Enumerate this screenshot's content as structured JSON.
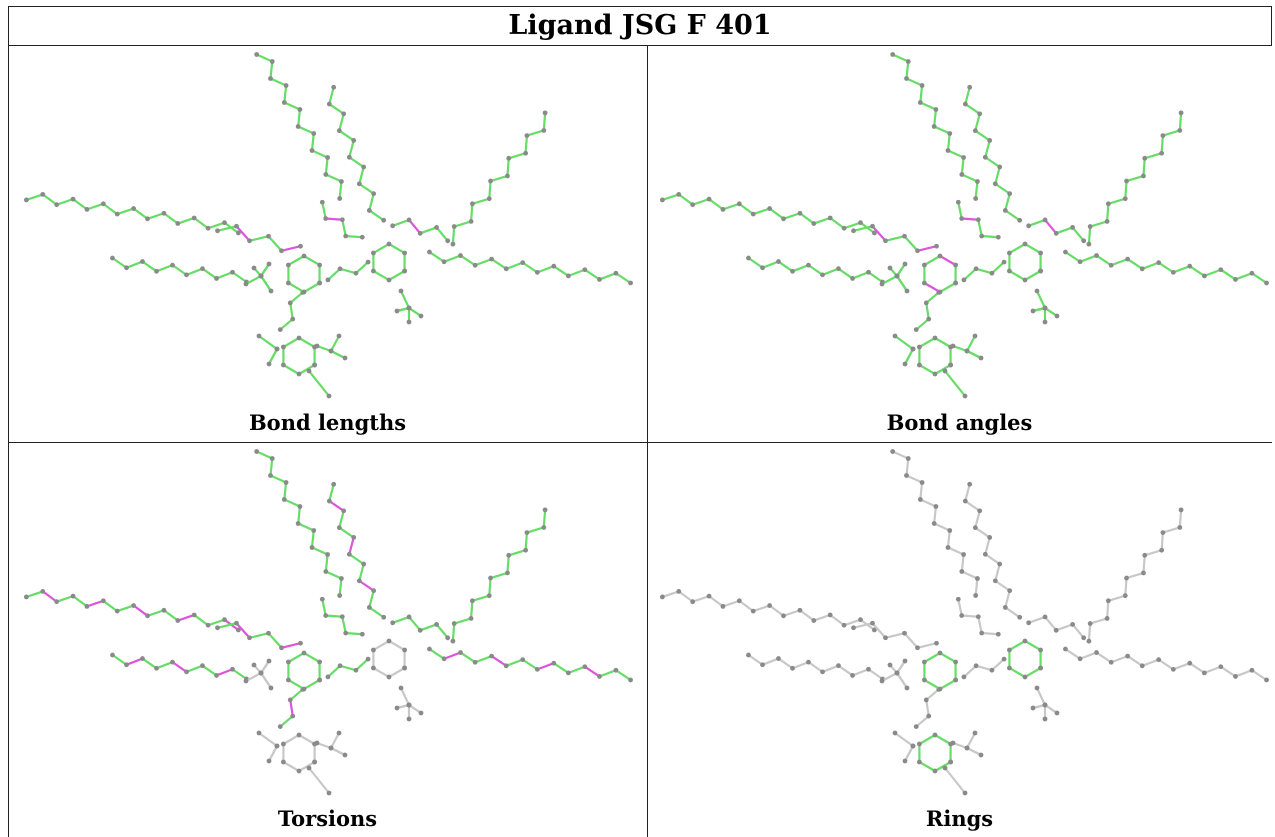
{
  "title": "Ligand JSG F 401",
  "colors": {
    "normal_bond": "#66dd66",
    "flagged_bond": "#dd55dd",
    "neutral_bond": "#c8c8c8",
    "atom": "#8a8a8a",
    "border": "#222222"
  },
  "panels": [
    {
      "caption": "Bond lengths",
      "scheme": "lengths"
    },
    {
      "caption": "Bond angles",
      "scheme": "angles"
    },
    {
      "caption": "Torsions",
      "scheme": "torsions"
    },
    {
      "caption": "Rings",
      "scheme": "rings"
    }
  ]
}
